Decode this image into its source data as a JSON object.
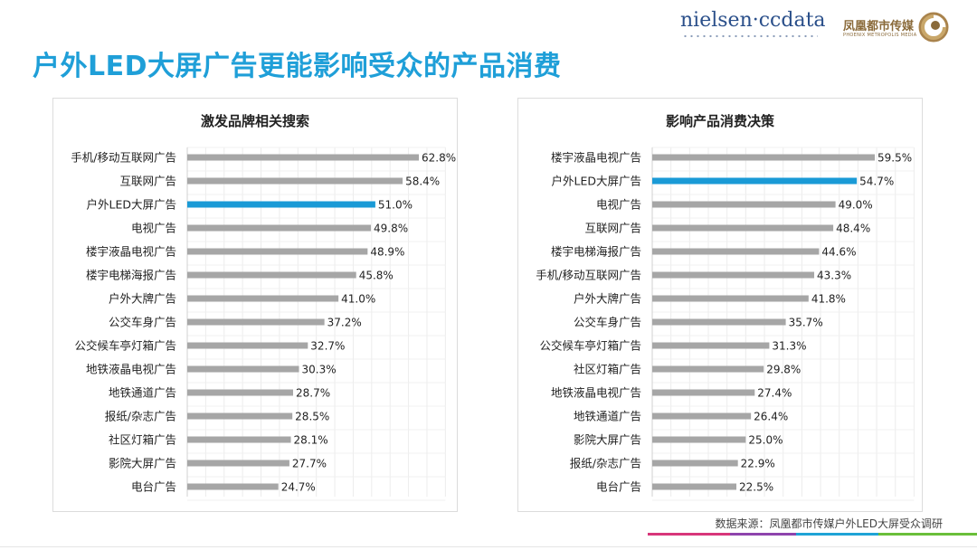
{
  "page": {
    "title": "户外LED大屏广告更能影响受众的产品消费",
    "logo_nielsen": "nielsen·ccdata",
    "logo_phoenix_cn": "凤凰都市传媒",
    "logo_phoenix_en": "PHOENIX METROPOLIS MEDIA",
    "source": "数据来源：凤凰都市传媒户外LED大屏受众调研"
  },
  "colors": {
    "title": "#1f9fd8",
    "bar_default": "#a6a6a6",
    "bar_highlight": "#1a9ad6"
  },
  "chart_data": [
    {
      "type": "bar",
      "orientation": "horizontal",
      "title": "激发品牌相关搜索",
      "categories": [
        "手机/移动互联网广告",
        "互联网广告",
        "户外LED大屏广告",
        "电视广告",
        "楼宇液晶电视广告",
        "楼宇电梯海报广告",
        "户外大牌广告",
        "公交车身广告",
        "公交候车亭灯箱广告",
        "地铁液晶电视广告",
        "地铁通道广告",
        "报纸/杂志广告",
        "社区灯箱广告",
        "影院大屏广告",
        "电台广告"
      ],
      "values": [
        62.8,
        58.4,
        51.0,
        49.8,
        48.9,
        45.8,
        41.0,
        37.2,
        32.7,
        30.3,
        28.7,
        28.5,
        28.1,
        27.7,
        24.7
      ],
      "labels": [
        "62.8%",
        "58.4%",
        "51.0%",
        "49.8%",
        "48.9%",
        "45.8%",
        "41.0%",
        "37.2%",
        "32.7%",
        "30.3%",
        "28.7%",
        "28.5%",
        "28.1%",
        "27.7%",
        "24.7%"
      ],
      "highlight": "户外LED大屏广告",
      "xlim": [
        0,
        70
      ],
      "unit": "%"
    },
    {
      "type": "bar",
      "orientation": "horizontal",
      "title": "影响产品消费决策",
      "categories": [
        "楼宇液晶电视广告",
        "户外LED大屏广告",
        "电视广告",
        "互联网广告",
        "楼宇电梯海报广告",
        "手机/移动互联网广告",
        "户外大牌广告",
        "公交车身广告",
        "公交候车亭灯箱广告",
        "社区灯箱广告",
        "地铁液晶电视广告",
        "地铁通道广告",
        "影院大屏广告",
        "报纸/杂志广告",
        "电台广告"
      ],
      "values": [
        59.5,
        54.7,
        49.0,
        48.4,
        44.6,
        43.3,
        41.8,
        35.7,
        31.3,
        29.8,
        27.4,
        26.4,
        25.0,
        22.9,
        22.5
      ],
      "labels": [
        "59.5%",
        "54.7%",
        "49.0%",
        "48.4%",
        "44.6%",
        "43.3%",
        "41.8%",
        "35.7%",
        "31.3%",
        "29.8%",
        "27.4%",
        "26.4%",
        "25.0%",
        "22.9%",
        "22.5%"
      ],
      "highlight": "户外LED大屏广告",
      "xlim": [
        0,
        70
      ],
      "unit": "%"
    }
  ]
}
